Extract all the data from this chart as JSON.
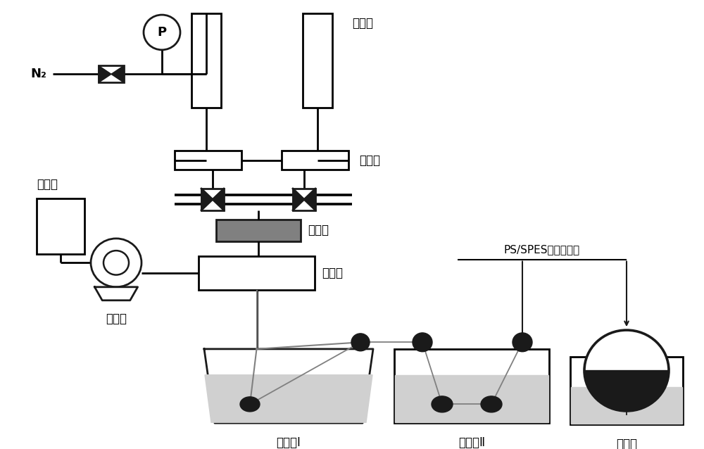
{
  "bg_color": "#ffffff",
  "line_color": "#1a1a1a",
  "liquid_color": "#d0d0d0",
  "metering_color": "#808080",
  "labels": {
    "N2": "N₂",
    "stirrer": "搞拌釜",
    "filter": "过滤器",
    "core_tank": "芝液釜",
    "metering_pump": "计量泵",
    "spinneret": "喂丝头",
    "peristaltic": "螠动泵",
    "bath1": "凝固浴Ⅰ",
    "bath2": "凝固浴Ⅱ",
    "winder": "卷丝机",
    "membrane": "PS/SPES中空纤维膜"
  },
  "figsize": [
    10.0,
    6.38
  ],
  "dpi": 100
}
